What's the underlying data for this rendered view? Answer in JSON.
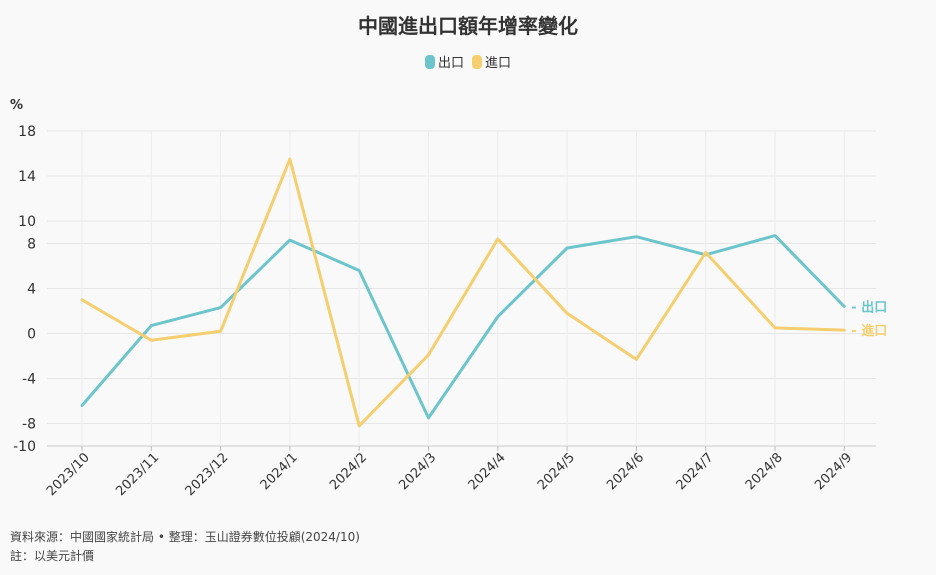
{
  "title": "中國進出口額年增率變化",
  "unit": "%",
  "footer": {
    "source": "資料來源：中國國家統計局 • 整理：玉山證券數位投顧(2024/10)",
    "note": "註：以美元計價"
  },
  "end_labels": {
    "export": "- 出口",
    "import": "- 進口"
  },
  "chart_data": {
    "type": "line",
    "title": "中國進出口額年增率變化",
    "ylabel": "%",
    "xlabel": "",
    "ylim": [
      -10,
      18
    ],
    "yticks": [
      18,
      14,
      10,
      8,
      4,
      0,
      -4,
      -8,
      -10
    ],
    "grid": true,
    "legend": "top-center",
    "categories": [
      "2023/10",
      "2023/11",
      "2023/12",
      "2024/1",
      "2024/2",
      "2024/3",
      "2024/4",
      "2024/5",
      "2024/6",
      "2024/7",
      "2024/8",
      "2024/9"
    ],
    "series": [
      {
        "name": "出口",
        "color": "#6cc5cb",
        "values": [
          -6.4,
          0.7,
          2.3,
          8.3,
          5.6,
          -7.5,
          1.5,
          7.6,
          8.6,
          7.0,
          8.7,
          2.4
        ]
      },
      {
        "name": "進口",
        "color": "#f5cf6f",
        "values": [
          3.0,
          -0.6,
          0.2,
          15.5,
          -8.2,
          -1.9,
          8.4,
          1.8,
          -2.3,
          7.2,
          0.5,
          0.3
        ]
      }
    ]
  }
}
